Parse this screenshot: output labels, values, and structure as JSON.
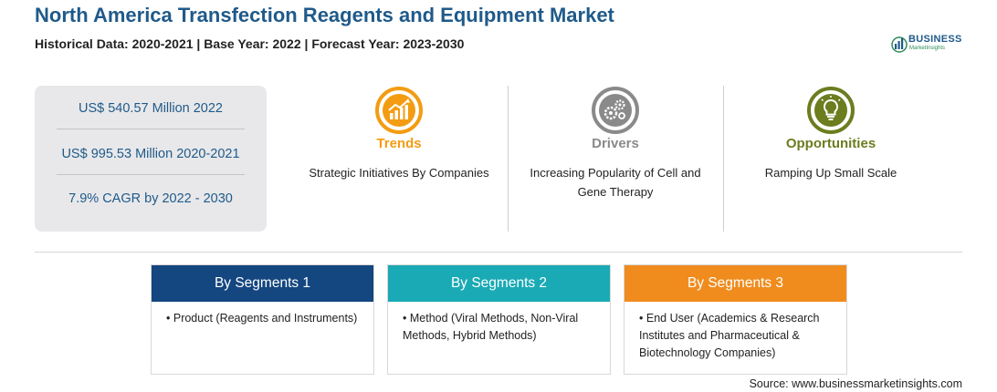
{
  "header": {
    "title": "North America Transfection Reagents and Equipment Market",
    "subtitle": "Historical Data: 2020-2021 | Base Year: 2022 | Forecast Year: 2023-2030"
  },
  "logo": {
    "name": "BUSINESS",
    "tagline": "MarketInsights",
    "icon": "bar-chart-globe-logo"
  },
  "stats": [
    "US$ 540.57 Million 2022",
    "US$ 995.53 Million 2020-2021",
    "7.9% CAGR by 2022 - 2030"
  ],
  "features": [
    {
      "title": "Trends",
      "text": "Strategic Initiatives By Companies",
      "color": "#f39c12",
      "icon": "trend-chart-icon"
    },
    {
      "title": "Drivers",
      "text": "Increasing Popularity of Cell and Gene Therapy",
      "color": "#8a8a8a",
      "icon": "gears-icon"
    },
    {
      "title": "Opportunities",
      "text": "Ramping Up Small Scale",
      "color": "#6b7d1f",
      "icon": "lightbulb-icon"
    }
  ],
  "segments": [
    {
      "title": "By Segments 1",
      "items": [
        "Product (Reagents and Instruments)"
      ],
      "color": "#14467f"
    },
    {
      "title": "By Segments 2",
      "items": [
        "Method (Viral Methods, Non-Viral Methods, Hybrid Methods)"
      ],
      "color": "#19aab5"
    },
    {
      "title": "By Segments 3",
      "items": [
        "End User (Academics & Research Institutes and Pharmaceutical & Biotechnology Companies)"
      ],
      "color": "#f08c1e"
    }
  ],
  "source": "Source: www.businessmarketinsights.com"
}
